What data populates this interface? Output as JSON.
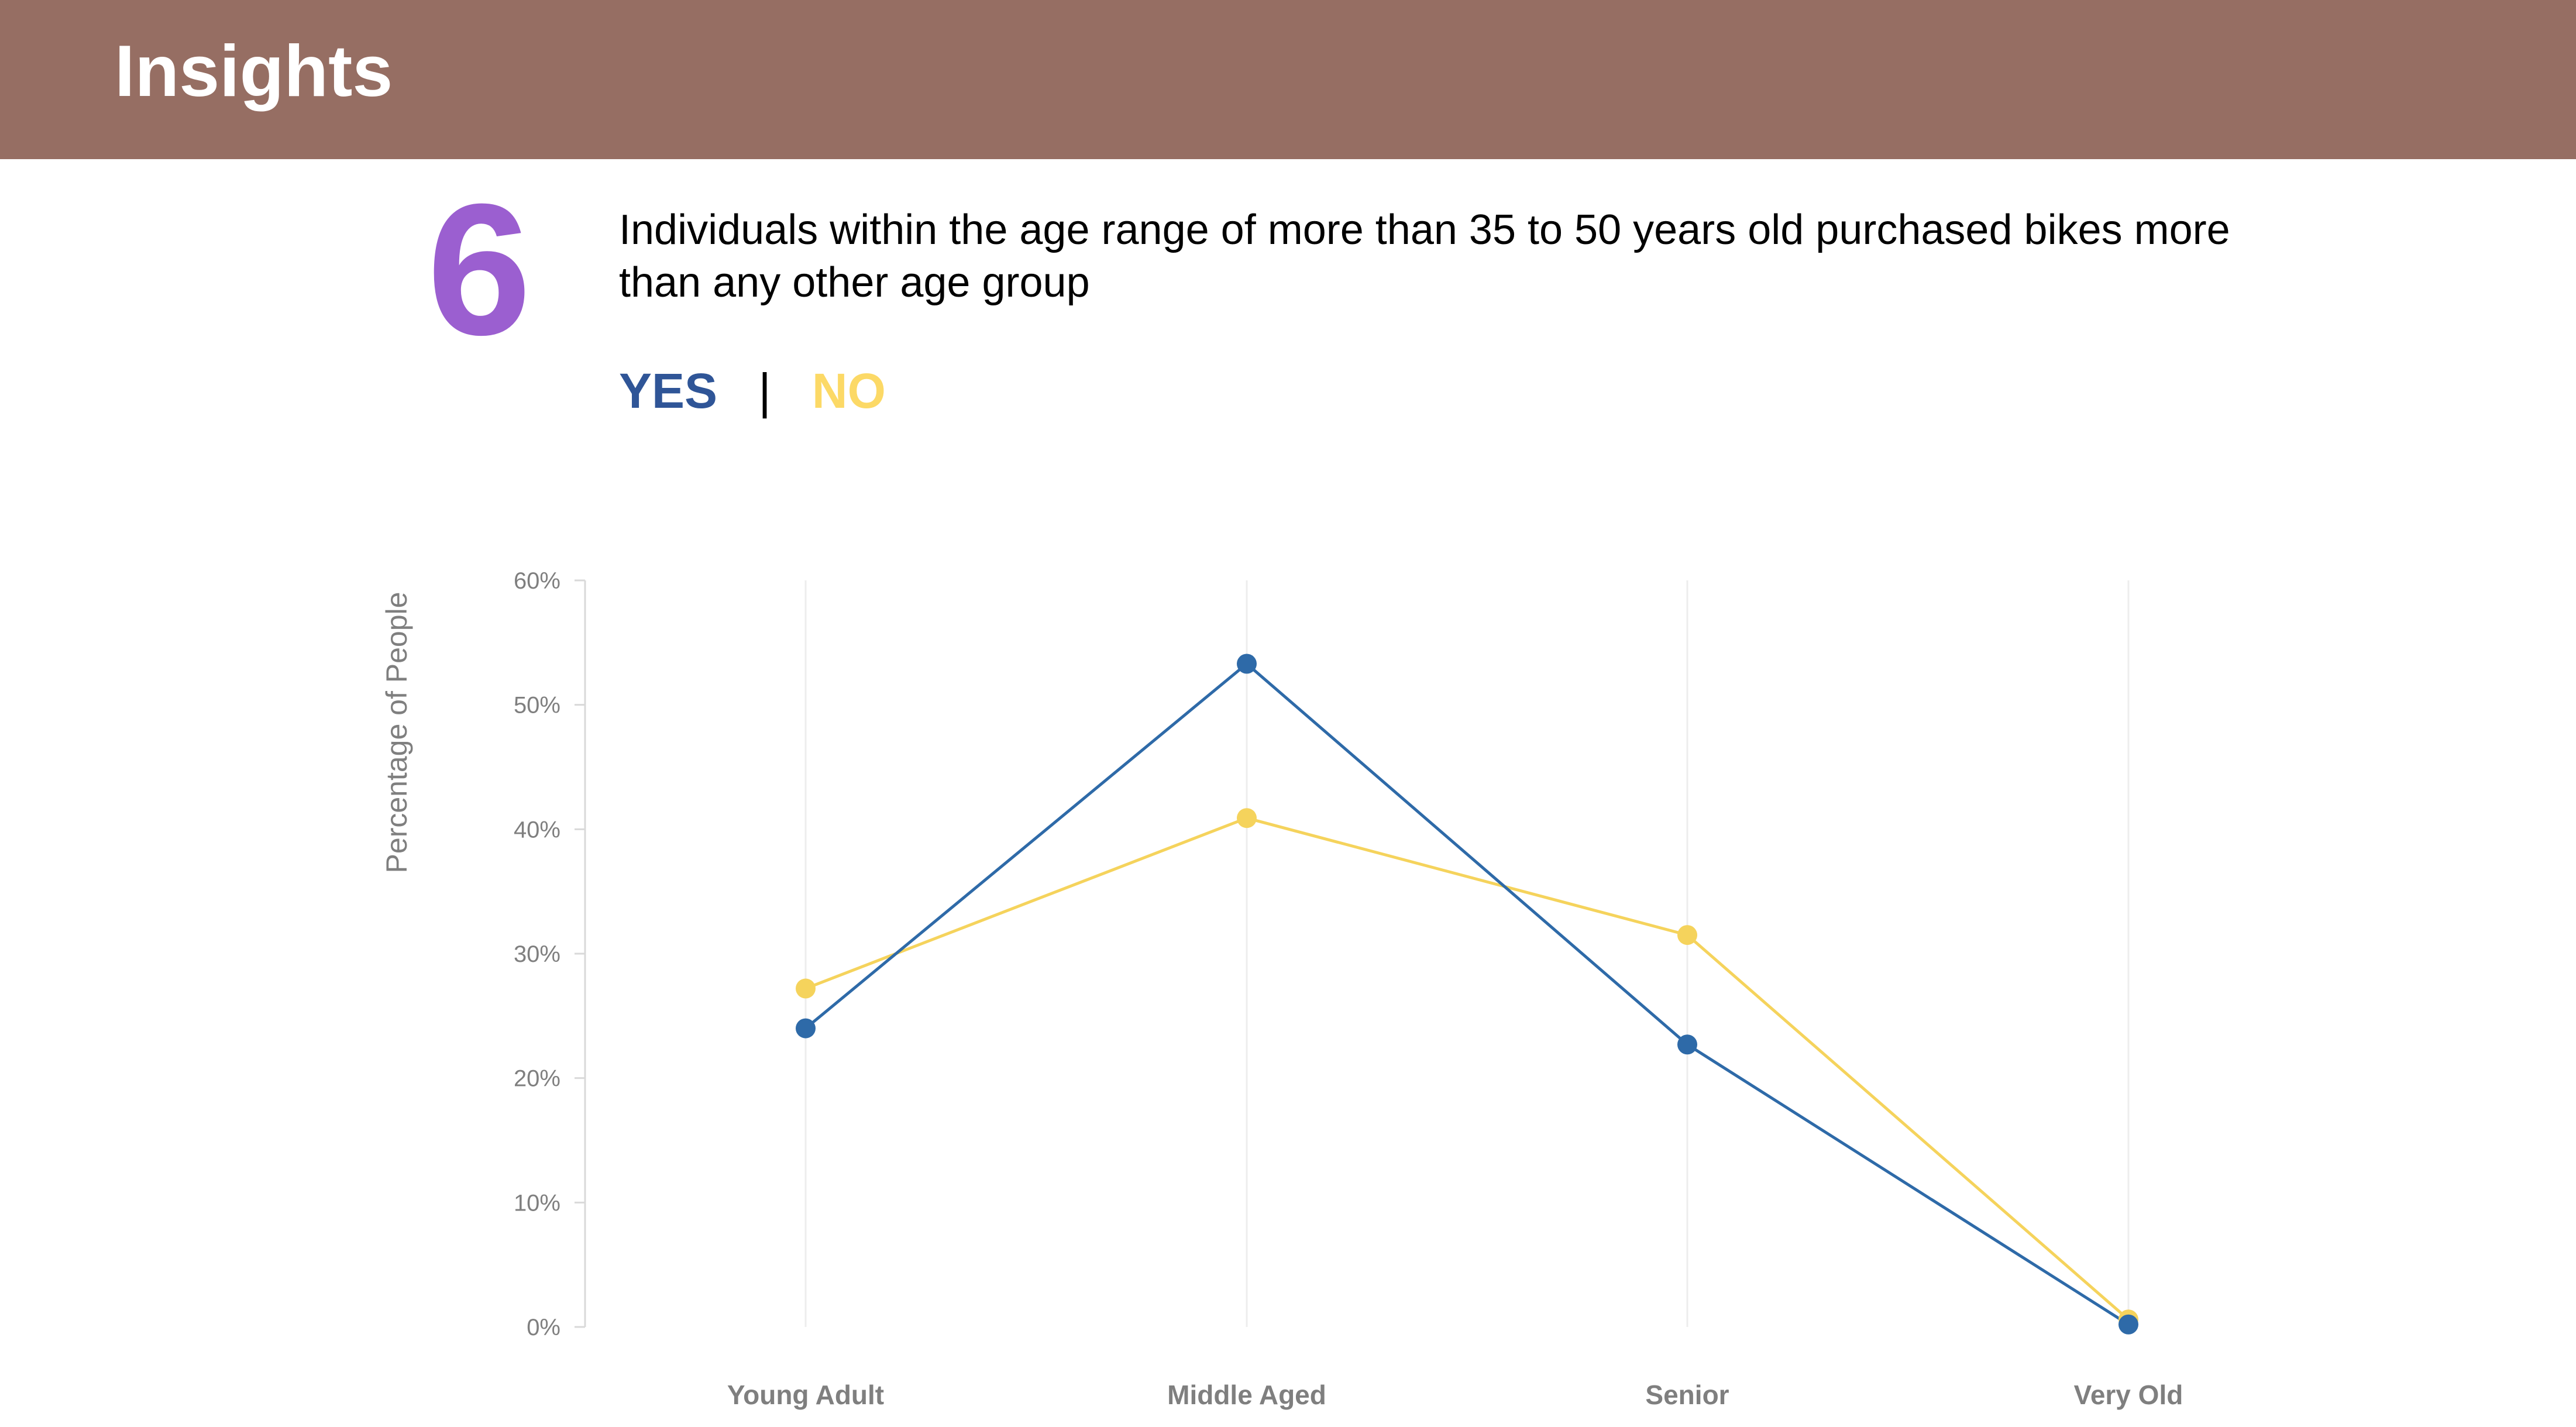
{
  "header": {
    "title": "Insights"
  },
  "insight": {
    "number": "6",
    "statement": "Individuals within the age range of more than 35 to 50 years old purchased bikes more than any other age group"
  },
  "legend": {
    "yes_label": "YES",
    "separator": "|",
    "no_label": "NO"
  },
  "colors": {
    "header_bg": "#966e63",
    "number": "#9b5fd0",
    "yes": "#2e6aa8",
    "yes_text": "#2f5597",
    "no": "#f5d35c",
    "no_text": "#fcd966",
    "axis_text": "#7f7f7f",
    "gridline": "#ededed"
  },
  "chart_data": {
    "type": "line",
    "title": "",
    "xlabel": "",
    "ylabel": "Percentage  of  People",
    "categories": [
      "Young Adult",
      "Middle Aged",
      "Senior",
      "Very Old"
    ],
    "series": [
      {
        "name": "YES",
        "values": [
          24,
          53.3,
          22.7,
          0.2
        ]
      },
      {
        "name": "NO",
        "values": [
          27.2,
          40.9,
          31.5,
          0.6
        ]
      }
    ],
    "ylim": [
      0,
      60
    ],
    "yticks": [
      0,
      10,
      20,
      30,
      40,
      50,
      60
    ],
    "ytick_labels": [
      "0%",
      "10%",
      "20%",
      "30%",
      "40%",
      "50%",
      "60%"
    ],
    "grid": "vertical",
    "legend_position": "top-left"
  }
}
